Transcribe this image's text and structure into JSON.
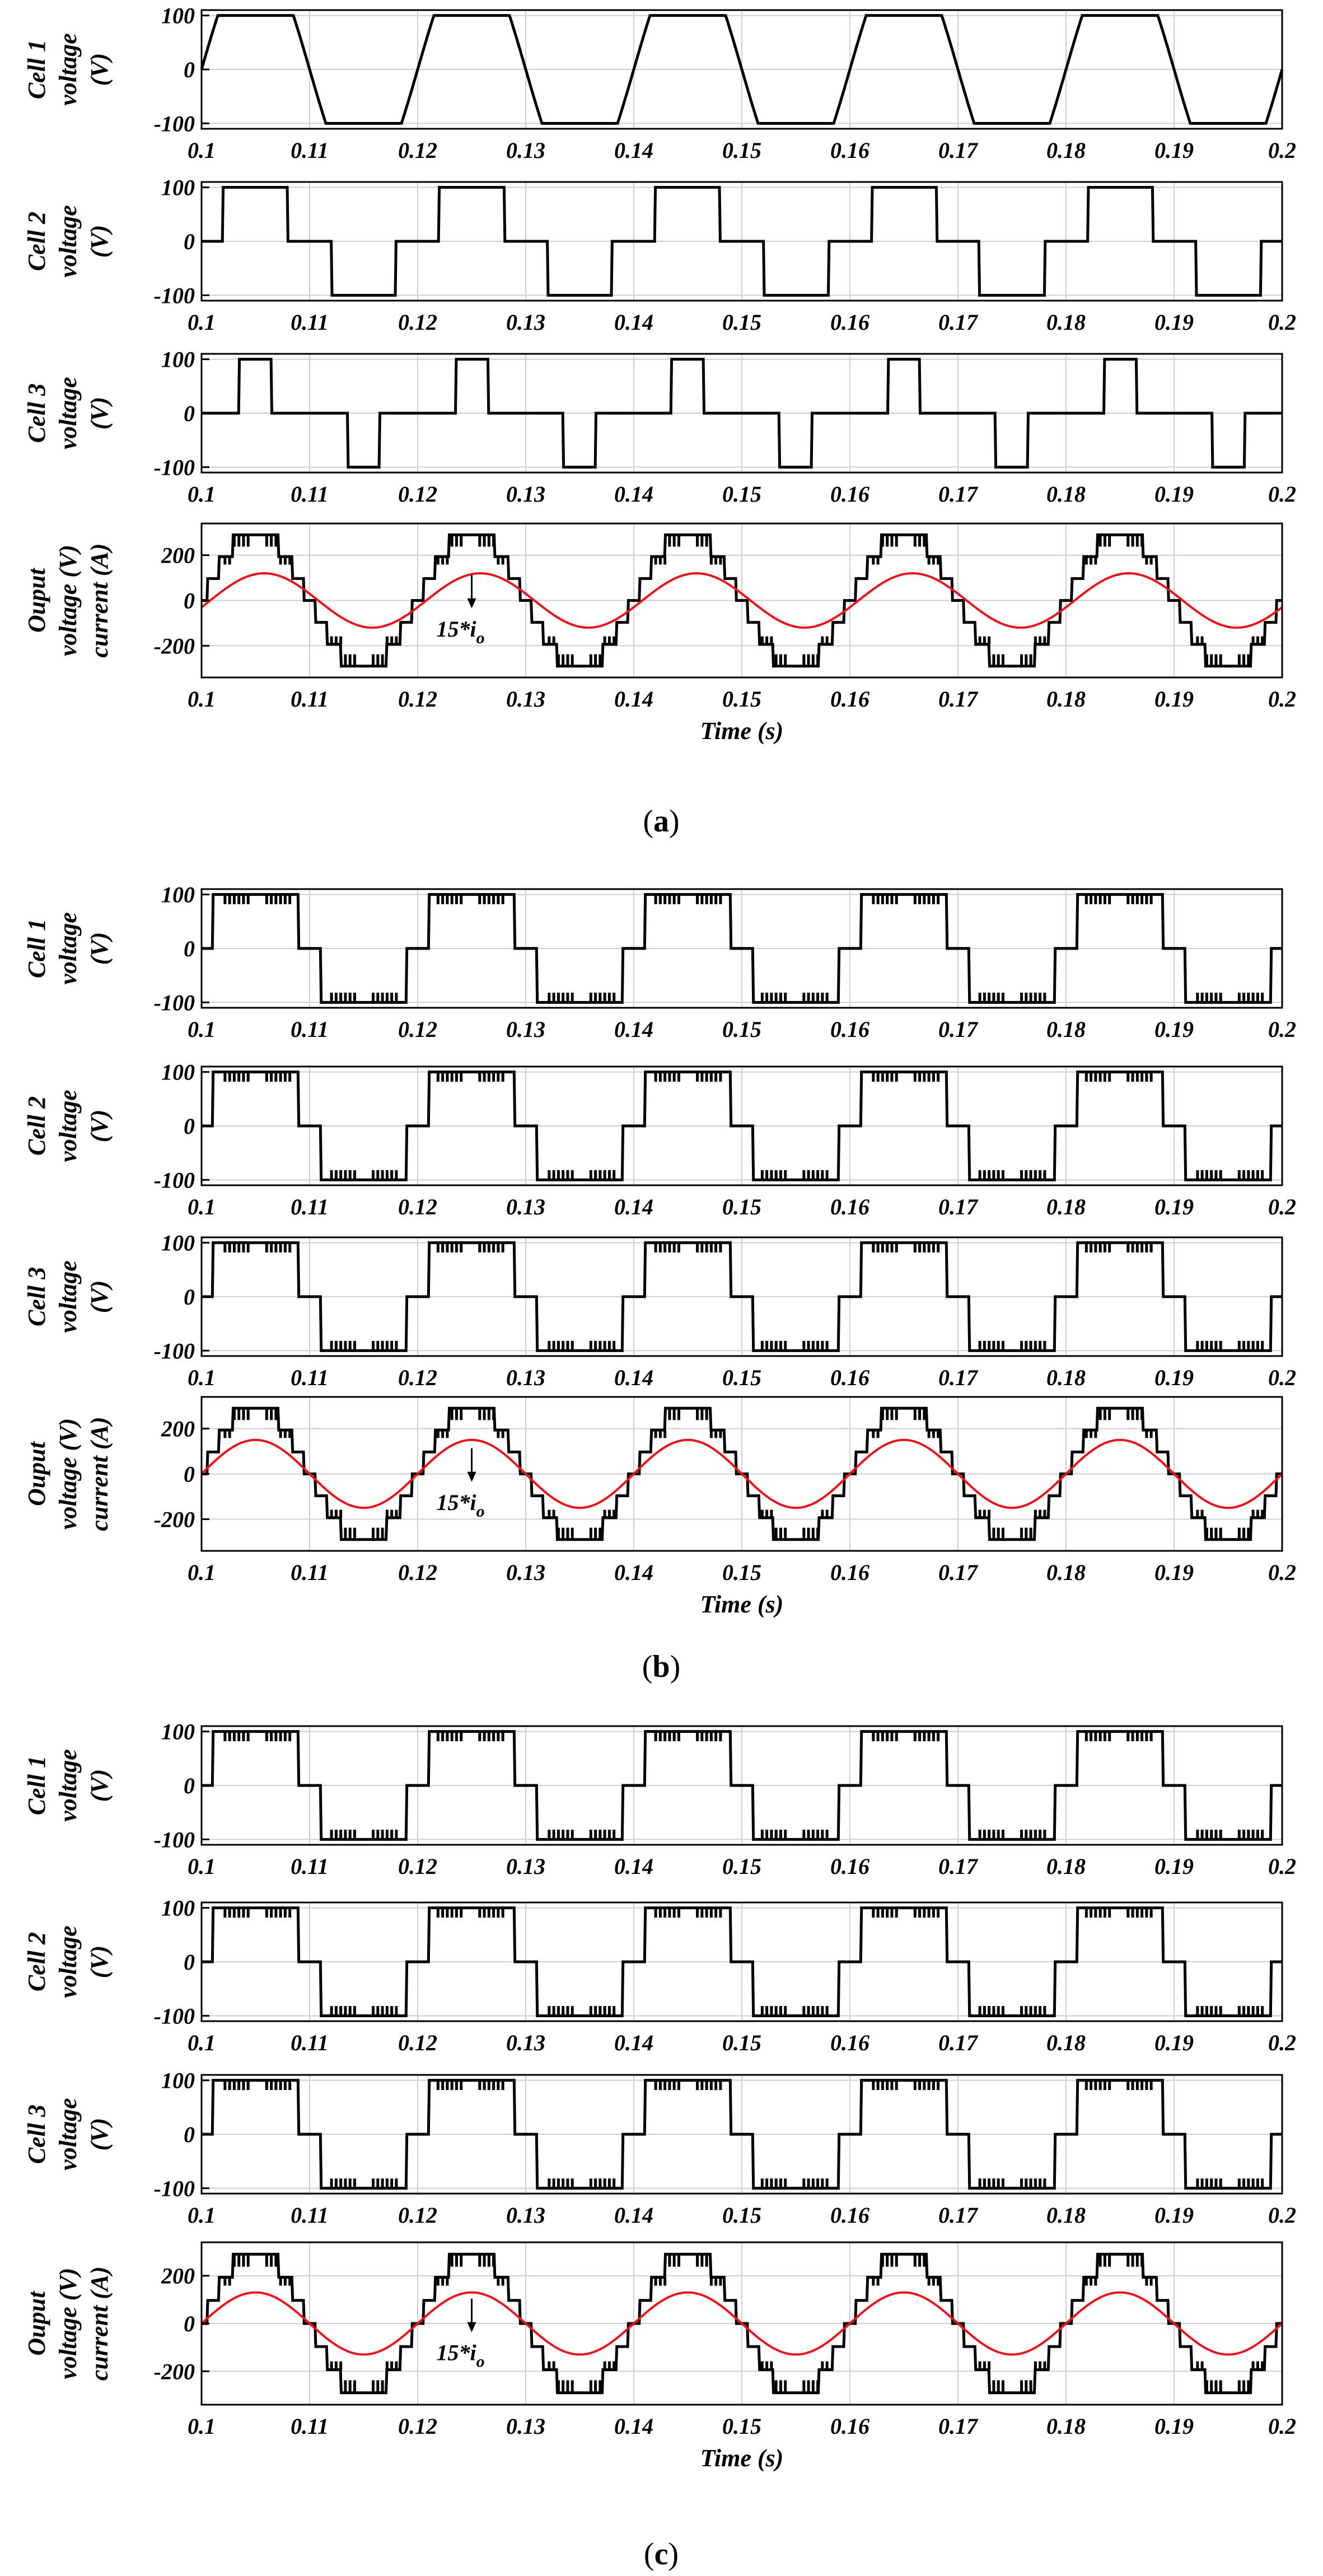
{
  "figure": {
    "captions": [
      "a",
      "b",
      "c"
    ]
  },
  "chart_data": [
    {
      "type": "line",
      "group": "a",
      "title": "",
      "ylabel": [
        "Cell 1",
        "voltage",
        "(V)"
      ],
      "xlabel": "",
      "xlim": [
        0.1,
        0.2
      ],
      "ylim": [
        -110,
        110
      ],
      "yticks": [
        -100,
        0,
        100
      ],
      "xticks": [
        "0.1",
        "0.11",
        "0.12",
        "0.13",
        "0.14",
        "0.15",
        "0.16",
        "0.17",
        "0.18",
        "0.19",
        "0.2"
      ],
      "grid": true,
      "series": [
        {
          "name": "Cell 1 voltage",
          "color": "#000000",
          "shape": "trapezoid",
          "amplitude": 100,
          "phase": 0.0,
          "pwm": false
        }
      ]
    },
    {
      "type": "line",
      "group": "a",
      "ylabel": [
        "Cell 2",
        "voltage",
        "(V)"
      ],
      "xlabel": "",
      "xlim": [
        0.1,
        0.2
      ],
      "ylim": [
        -110,
        110
      ],
      "yticks": [
        -100,
        0,
        100
      ],
      "xticks": [
        "0.1",
        "0.11",
        "0.12",
        "0.13",
        "0.14",
        "0.15",
        "0.16",
        "0.17",
        "0.18",
        "0.19",
        "0.2"
      ],
      "grid": true,
      "series": [
        {
          "name": "Cell 2 voltage",
          "color": "#000000",
          "shape": "pulse",
          "amplitude": 100,
          "width": 0.6,
          "pwm": false
        }
      ]
    },
    {
      "type": "line",
      "group": "a",
      "ylabel": [
        "Cell 3",
        "voltage",
        "(V)"
      ],
      "xlabel": "",
      "xlim": [
        0.1,
        0.2
      ],
      "ylim": [
        -110,
        110
      ],
      "yticks": [
        -100,
        0,
        100
      ],
      "xticks": [
        "0.1",
        "0.11",
        "0.12",
        "0.13",
        "0.14",
        "0.15",
        "0.16",
        "0.17",
        "0.18",
        "0.19",
        "0.2"
      ],
      "grid": true,
      "series": [
        {
          "name": "Cell 3 voltage",
          "color": "#000000",
          "shape": "pulse",
          "amplitude": 100,
          "width": 0.3,
          "pwm": false
        }
      ]
    },
    {
      "type": "line",
      "group": "a",
      "ylabel": [
        "Ouput",
        "voltage (V)",
        "current (A)"
      ],
      "xlabel": "Time (s)",
      "xlim": [
        0.1,
        0.2
      ],
      "ylim": [
        -340,
        340
      ],
      "yticks": [
        -200,
        0,
        200
      ],
      "xticks": [
        "0.1",
        "0.11",
        "0.12",
        "0.13",
        "0.14",
        "0.15",
        "0.16",
        "0.17",
        "0.18",
        "0.19",
        "0.2"
      ],
      "grid": true,
      "annotation": {
        "text": "15*",
        "sub": "o",
        "italic_var": "i",
        "x": 0.125,
        "y": -60
      },
      "series": [
        {
          "name": "Output voltage",
          "color": "#000000",
          "shape": "staircase",
          "amplitude": 290,
          "levels": 7
        },
        {
          "name": "15*i_o",
          "color": "#e8141a",
          "shape": "sine",
          "amplitude": 120,
          "phase_lag": 0.0008
        }
      ]
    },
    {
      "type": "line",
      "group": "b",
      "ylabel": [
        "Cell 1",
        "voltage",
        "(V)"
      ],
      "xlabel": "",
      "xlim": [
        0.1,
        0.2
      ],
      "ylim": [
        -110,
        110
      ],
      "yticks": [
        -100,
        0,
        100
      ],
      "xticks": [
        "0.1",
        "0.11",
        "0.12",
        "0.13",
        "0.14",
        "0.15",
        "0.16",
        "0.17",
        "0.18",
        "0.19",
        "0.2"
      ],
      "grid": true,
      "series": [
        {
          "name": "Cell 1 voltage",
          "color": "#000000",
          "shape": "stepped",
          "amplitude": 100,
          "pwm": true
        }
      ]
    },
    {
      "type": "line",
      "group": "b",
      "ylabel": [
        "Cell 2",
        "voltage",
        "(V)"
      ],
      "xlabel": "",
      "xlim": [
        0.1,
        0.2
      ],
      "ylim": [
        -110,
        110
      ],
      "yticks": [
        -100,
        0,
        100
      ],
      "xticks": [
        "0.1",
        "0.11",
        "0.12",
        "0.13",
        "0.14",
        "0.15",
        "0.16",
        "0.17",
        "0.18",
        "0.19",
        "0.2"
      ],
      "grid": true,
      "series": [
        {
          "name": "Cell 2 voltage",
          "color": "#000000",
          "shape": "stepped",
          "amplitude": 100,
          "pwm": true
        }
      ]
    },
    {
      "type": "line",
      "group": "b",
      "ylabel": [
        "Cell 3",
        "voltage",
        "(V)"
      ],
      "xlabel": "",
      "xlim": [
        0.1,
        0.2
      ],
      "ylim": [
        -110,
        110
      ],
      "yticks": [
        -100,
        0,
        100
      ],
      "xticks": [
        "0.1",
        "0.11",
        "0.12",
        "0.13",
        "0.14",
        "0.15",
        "0.16",
        "0.17",
        "0.18",
        "0.19",
        "0.2"
      ],
      "grid": true,
      "series": [
        {
          "name": "Cell 3 voltage",
          "color": "#000000",
          "shape": "stepped",
          "amplitude": 100,
          "pwm": true
        }
      ]
    },
    {
      "type": "line",
      "group": "b",
      "ylabel": [
        "Ouput",
        "voltage (V)",
        "current (A)"
      ],
      "xlabel": "Time (s)",
      "xlim": [
        0.1,
        0.2
      ],
      "ylim": [
        -340,
        340
      ],
      "yticks": [
        -200,
        0,
        200
      ],
      "xticks": [
        "0.1",
        "0.11",
        "0.12",
        "0.13",
        "0.14",
        "0.15",
        "0.16",
        "0.17",
        "0.18",
        "0.19",
        "0.2"
      ],
      "grid": true,
      "annotation": {
        "text": "15*",
        "sub": "o",
        "italic_var": "i",
        "x": 0.125,
        "y": -60
      },
      "series": [
        {
          "name": "Output voltage",
          "color": "#000000",
          "shape": "staircase",
          "amplitude": 290,
          "levels": 7
        },
        {
          "name": "15*i_o",
          "color": "#e8141a",
          "shape": "sine",
          "amplitude": 150,
          "phase_lag": 0.0
        }
      ]
    },
    {
      "type": "line",
      "group": "c",
      "ylabel": [
        "Cell 1",
        "voltage",
        "(V)"
      ],
      "xlabel": "",
      "xlim": [
        0.1,
        0.2
      ],
      "ylim": [
        -110,
        110
      ],
      "yticks": [
        -100,
        0,
        100
      ],
      "xticks": [
        "0.1",
        "0.11",
        "0.12",
        "0.13",
        "0.14",
        "0.15",
        "0.16",
        "0.17",
        "0.18",
        "0.19",
        "0.2"
      ],
      "grid": true,
      "series": [
        {
          "name": "Cell 1 voltage",
          "color": "#000000",
          "shape": "mixed",
          "amplitude": 100,
          "pwm": true
        }
      ]
    },
    {
      "type": "line",
      "group": "c",
      "ylabel": [
        "Cell 2",
        "voltage",
        "(V)"
      ],
      "xlabel": "",
      "xlim": [
        0.1,
        0.2
      ],
      "ylim": [
        -110,
        110
      ],
      "yticks": [
        -100,
        0,
        100
      ],
      "xticks": [
        "0.1",
        "0.11",
        "0.12",
        "0.13",
        "0.14",
        "0.15",
        "0.16",
        "0.17",
        "0.18",
        "0.19",
        "0.2"
      ],
      "grid": true,
      "series": [
        {
          "name": "Cell 2 voltage",
          "color": "#000000",
          "shape": "mixed",
          "amplitude": 100,
          "pwm": true
        }
      ]
    },
    {
      "type": "line",
      "group": "c",
      "ylabel": [
        "Cell 3",
        "voltage",
        "(V)"
      ],
      "xlabel": "",
      "xlim": [
        0.1,
        0.2
      ],
      "ylim": [
        -110,
        110
      ],
      "yticks": [
        -100,
        0,
        100
      ],
      "xticks": [
        "0.1",
        "0.11",
        "0.12",
        "0.13",
        "0.14",
        "0.15",
        "0.16",
        "0.17",
        "0.18",
        "0.19",
        "0.2"
      ],
      "grid": true,
      "series": [
        {
          "name": "Cell 3 voltage",
          "color": "#000000",
          "shape": "mixed",
          "amplitude": 100,
          "pwm": true
        }
      ]
    },
    {
      "type": "line",
      "group": "c",
      "ylabel": [
        "Ouput",
        "voltage (V)",
        "current (A)"
      ],
      "xlabel": "Time (s)",
      "xlim": [
        0.1,
        0.2
      ],
      "ylim": [
        -340,
        340
      ],
      "yticks": [
        -200,
        0,
        200
      ],
      "xticks": [
        "0.1",
        "0.11",
        "0.12",
        "0.13",
        "0.14",
        "0.15",
        "0.16",
        "0.17",
        "0.18",
        "0.19",
        "0.2"
      ],
      "grid": true,
      "annotation": {
        "text": "15*",
        "sub": "o",
        "italic_var": "i",
        "x": 0.125,
        "y": -60
      },
      "series": [
        {
          "name": "Output voltage",
          "color": "#000000",
          "shape": "staircase",
          "amplitude": 290,
          "levels": 7
        },
        {
          "name": "15*i_o",
          "color": "#e8141a",
          "shape": "sine",
          "amplitude": 130,
          "phase_lag": 0.0
        }
      ]
    }
  ]
}
